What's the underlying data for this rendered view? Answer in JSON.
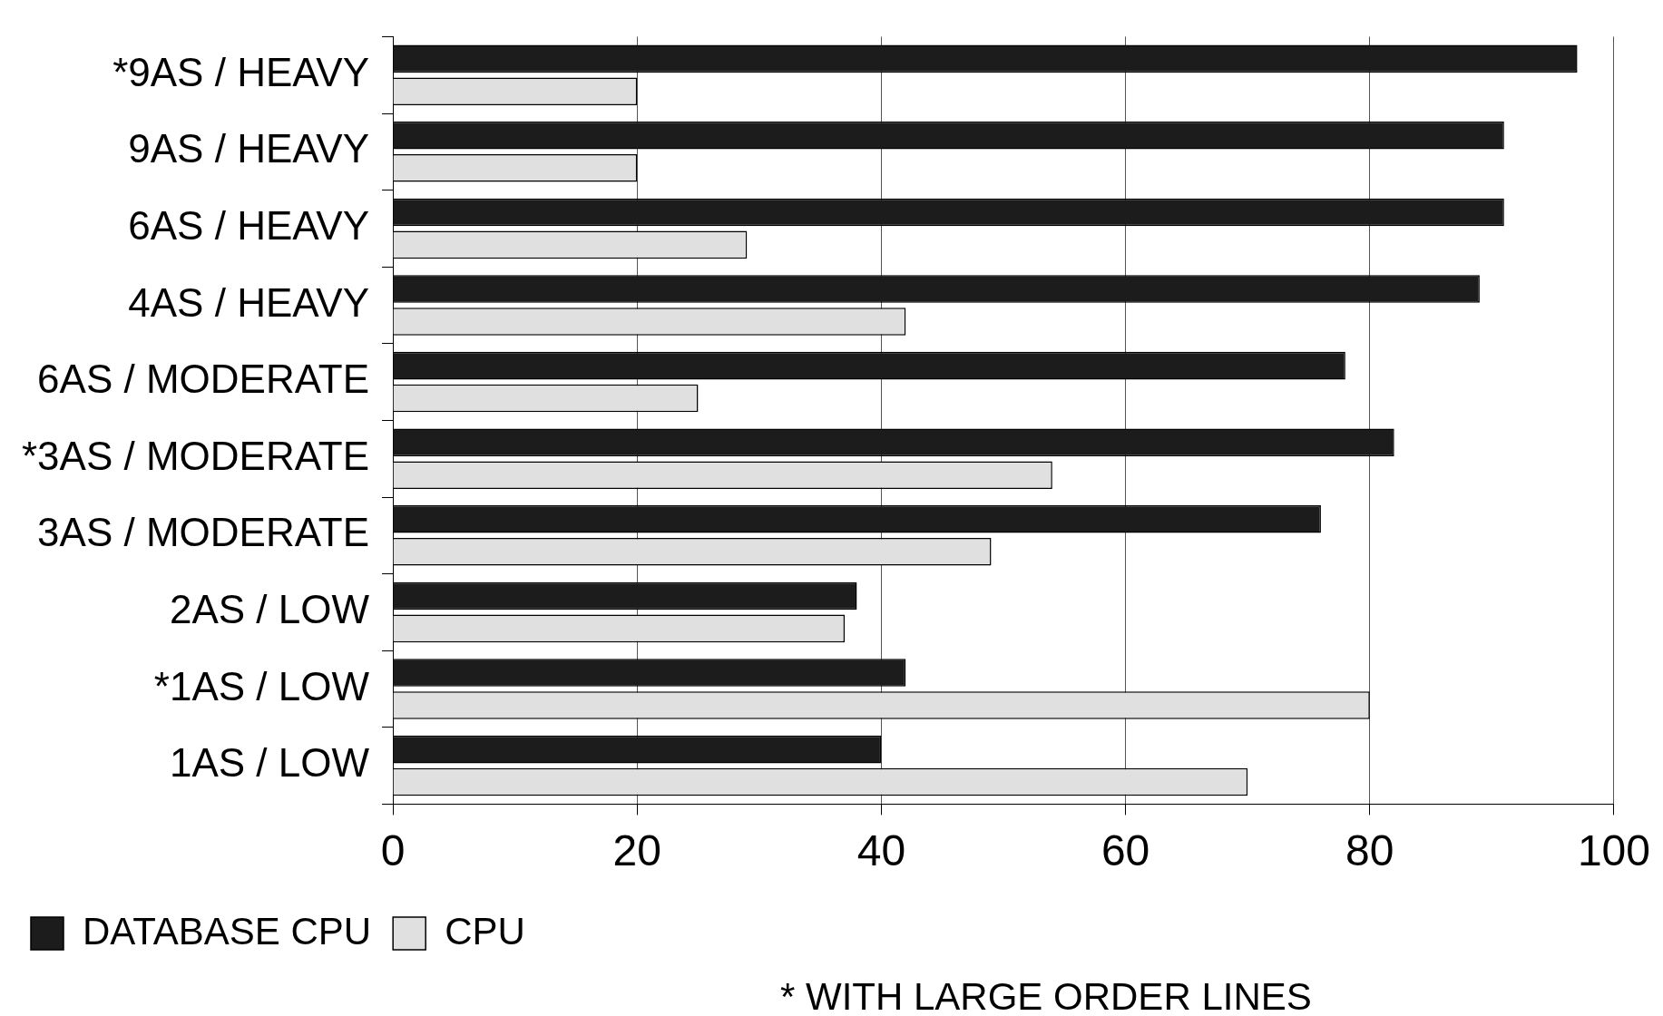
{
  "chart_data": {
    "type": "bar",
    "orientation": "horizontal",
    "categories": [
      "*9AS / HEAVY",
      "9AS / HEAVY",
      "6AS / HEAVY",
      "4AS / HEAVY",
      "6AS / MODERATE",
      "*3AS / MODERATE",
      "3AS / MODERATE",
      "2AS / LOW",
      "*1AS / LOW",
      "1AS / LOW"
    ],
    "series": [
      {
        "name": "DATABASE CPU",
        "color": "#1c1c1c",
        "values": [
          97,
          91,
          91,
          89,
          78,
          82,
          76,
          38,
          42,
          40
        ]
      },
      {
        "name": "CPU",
        "color": "#e0e0e0",
        "values": [
          20,
          20,
          29,
          42,
          25,
          54,
          49,
          37,
          80,
          70
        ]
      }
    ],
    "xlim": [
      0,
      100
    ],
    "xticks": [
      0,
      20,
      40,
      60,
      80,
      100
    ],
    "grid": "x",
    "legend": "bottom left",
    "annotations": [
      "* WITH LARGE ORDER LINES"
    ]
  }
}
